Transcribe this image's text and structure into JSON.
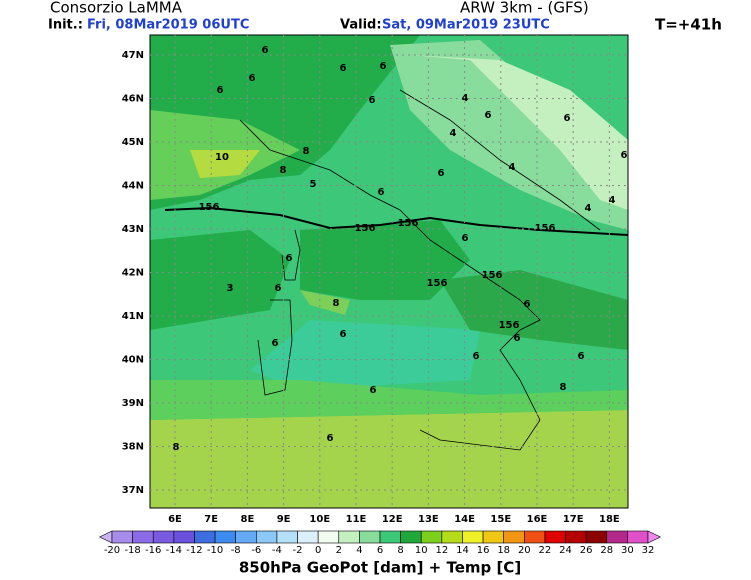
{
  "header": {
    "org": "Consorzio LaMMA",
    "model": "ARW 3km - (GFS)",
    "init_label": "Init.:",
    "init": "Fri, 08Mar2019 06UTC",
    "valid_label": "Valid:",
    "valid": "Sat, 09Mar2019 23UTC",
    "step": "T=+41h"
  },
  "lat_labels": [
    "47N",
    "46N",
    "45N",
    "44N",
    "43N",
    "42N",
    "41N",
    "40N",
    "39N",
    "38N",
    "37N"
  ],
  "lon_labels": [
    "6E",
    "7E",
    "8E",
    "9E",
    "10E",
    "11E",
    "12E",
    "13E",
    "14E",
    "15E",
    "16E",
    "17E",
    "18E"
  ],
  "contour_labels": [
    "6",
    "6",
    "6",
    "6",
    "6",
    "6",
    "4",
    "6",
    "6",
    "4",
    "6",
    "10",
    "8",
    "8",
    "5",
    "6",
    "4",
    "6",
    "4",
    "4",
    "156",
    "156",
    "156",
    "6",
    "156",
    "6",
    "156",
    "156",
    "6",
    "8",
    "6",
    "156",
    "6",
    "6",
    "6",
    "6",
    "6",
    "6",
    "8",
    "6",
    "8",
    "3"
  ],
  "colorbar": {
    "labels": [
      "-20",
      "-18",
      "-16",
      "-14",
      "-12",
      "-10",
      "-8",
      "-6",
      "-4",
      "-2",
      "0",
      "2",
      "4",
      "6",
      "8",
      "10",
      "12",
      "14",
      "16",
      "18",
      "20",
      "22",
      "24",
      "26",
      "28",
      "30",
      "32"
    ],
    "colors": [
      "#c8b4f0",
      "#a78cec",
      "#8c6ce6",
      "#7a5ae0",
      "#6a50dc",
      "#3c6ee0",
      "#3c8cf0",
      "#64aaf4",
      "#8cc8f8",
      "#b4e0fa",
      "#dcf0fc",
      "#f0fcf0",
      "#c4f0c0",
      "#88dc9c",
      "#3cc878",
      "#20a83c",
      "#7cd01c",
      "#b4dc18",
      "#f0f028",
      "#f0c814",
      "#f09614",
      "#f05014",
      "#e00000",
      "#b40000",
      "#8c0000",
      "#b4288c",
      "#e050c8",
      "#f088f0"
    ]
  },
  "footer": "850hPa GeoPot [dam] + Temp [C]"
}
